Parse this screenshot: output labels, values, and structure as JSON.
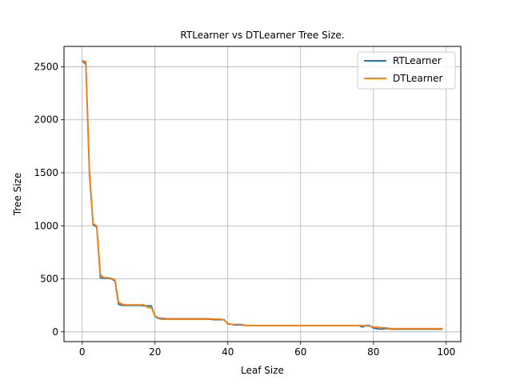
{
  "chart_data": {
    "type": "line",
    "title": "RTLearner vs DTLearner Tree Size.",
    "xlabel": "Leaf Size",
    "ylabel": "Tree Size",
    "xlim": [
      -5,
      104
    ],
    "ylim": [
      -92,
      2692
    ],
    "xticks": [
      0,
      20,
      40,
      60,
      80,
      100
    ],
    "yticks": [
      0,
      500,
      1000,
      1500,
      2000,
      2500
    ],
    "grid": true,
    "legend_position": "top-right",
    "series": [
      {
        "name": "RTLearner",
        "color": "#1f77b4",
        "x": [
          0,
          1,
          2,
          3,
          4,
          5,
          6,
          7,
          8,
          9,
          10,
          11,
          12,
          13,
          14,
          15,
          16,
          17,
          18,
          19,
          20,
          21,
          22,
          23,
          24,
          25,
          26,
          27,
          28,
          29,
          30,
          31,
          32,
          33,
          34,
          35,
          36,
          37,
          38,
          39,
          40,
          41,
          42,
          43,
          44,
          45,
          46,
          47,
          48,
          49,
          50,
          51,
          52,
          53,
          54,
          55,
          56,
          57,
          58,
          59,
          60,
          61,
          62,
          63,
          64,
          65,
          66,
          67,
          68,
          69,
          70,
          71,
          72,
          73,
          74,
          75,
          76,
          77,
          78,
          79,
          80,
          81,
          82,
          83,
          84,
          85,
          86,
          87,
          88,
          89,
          90,
          91,
          92,
          93,
          94,
          95,
          96,
          97,
          98,
          99
        ],
        "y": [
          2560,
          2520,
          1480,
          1010,
          990,
          510,
          505,
          505,
          500,
          480,
          260,
          250,
          250,
          250,
          250,
          250,
          250,
          245,
          245,
          245,
          145,
          125,
          120,
          120,
          120,
          120,
          120,
          120,
          120,
          120,
          120,
          120,
          120,
          120,
          120,
          120,
          115,
          115,
          115,
          115,
          75,
          70,
          65,
          65,
          65,
          60,
          60,
          60,
          60,
          60,
          60,
          60,
          60,
          60,
          60,
          60,
          60,
          60,
          60,
          60,
          60,
          60,
          60,
          60,
          60,
          60,
          60,
          60,
          60,
          60,
          60,
          60,
          60,
          60,
          60,
          60,
          60,
          45,
          60,
          60,
          35,
          30,
          25,
          30,
          30,
          25,
          25,
          25,
          25,
          25,
          25,
          25,
          25,
          25,
          25,
          25,
          25,
          25,
          25,
          25
        ]
      },
      {
        "name": "DTLearner",
        "color": "#ff7f0e",
        "x": [
          0,
          1,
          2,
          3,
          4,
          5,
          6,
          7,
          8,
          9,
          10,
          11,
          12,
          13,
          14,
          15,
          16,
          17,
          18,
          19,
          20,
          21,
          22,
          23,
          24,
          25,
          26,
          27,
          28,
          29,
          30,
          31,
          32,
          33,
          34,
          35,
          36,
          37,
          38,
          39,
          40,
          41,
          42,
          43,
          44,
          45,
          46,
          47,
          48,
          49,
          50,
          51,
          52,
          53,
          54,
          55,
          56,
          57,
          58,
          59,
          60,
          61,
          62,
          63,
          64,
          65,
          66,
          67,
          68,
          69,
          70,
          71,
          72,
          73,
          74,
          75,
          76,
          77,
          78,
          79,
          80,
          81,
          82,
          83,
          84,
          85,
          86,
          87,
          88,
          89,
          90,
          91,
          92,
          93,
          94,
          95,
          96,
          97,
          98,
          99
        ],
        "y": [
          2555,
          2550,
          1510,
          1020,
          1000,
          540,
          510,
          510,
          505,
          490,
          280,
          260,
          255,
          255,
          255,
          255,
          255,
          255,
          230,
          230,
          150,
          130,
          130,
          125,
          125,
          125,
          125,
          125,
          125,
          125,
          125,
          125,
          125,
          125,
          125,
          125,
          120,
          120,
          120,
          110,
          80,
          70,
          70,
          70,
          70,
          60,
          60,
          60,
          60,
          60,
          60,
          60,
          60,
          60,
          60,
          60,
          60,
          60,
          60,
          60,
          60,
          60,
          60,
          60,
          60,
          60,
          60,
          60,
          60,
          60,
          60,
          60,
          60,
          60,
          60,
          60,
          60,
          60,
          55,
          55,
          45,
          45,
          40,
          40,
          35,
          30,
          30,
          30,
          30,
          30,
          30,
          30,
          30,
          30,
          30,
          30,
          30,
          30,
          30,
          30
        ]
      }
    ]
  }
}
